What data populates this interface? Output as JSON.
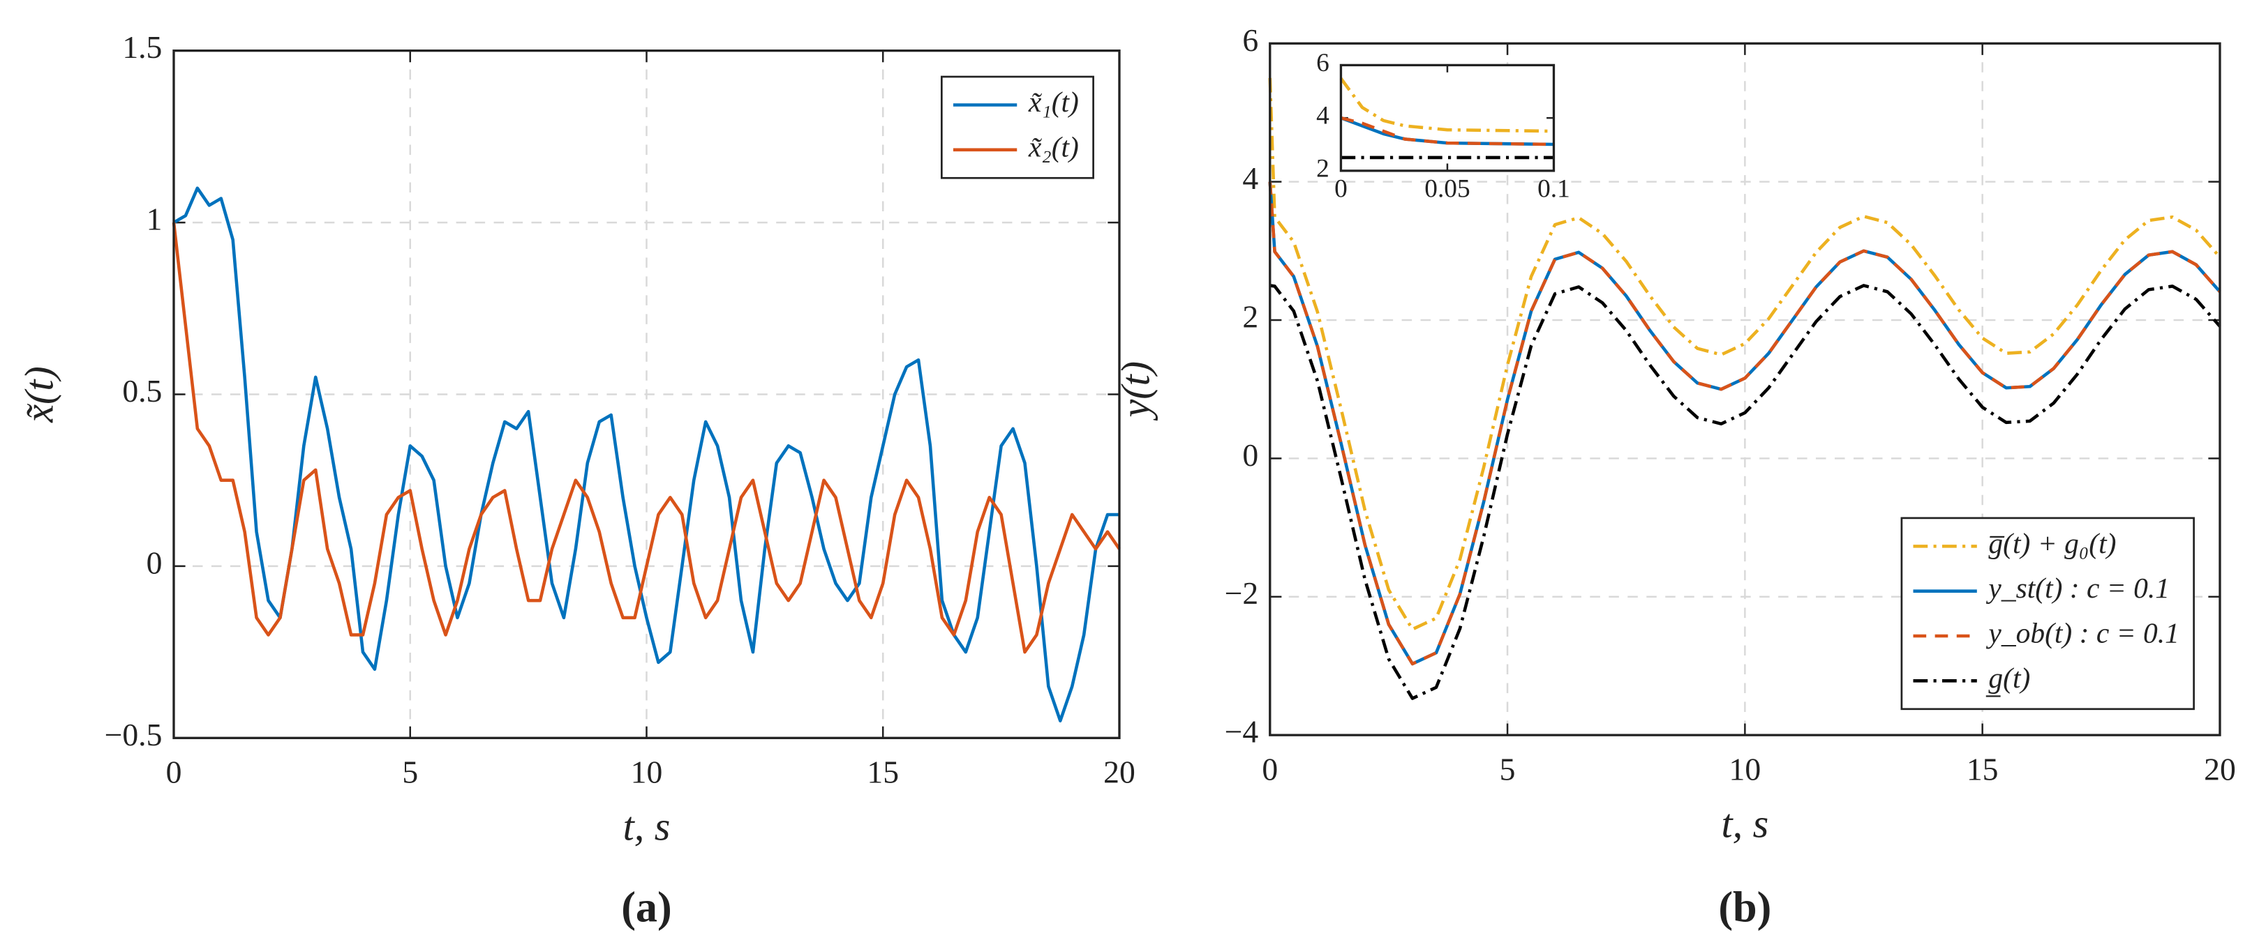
{
  "chart_data": [
    {
      "type": "line",
      "label": "(a)",
      "xlabel": "t, s",
      "ylabel": "x̃(t)",
      "xlim": [
        0,
        20
      ],
      "xticks": [
        0,
        5,
        10,
        15,
        20
      ],
      "ylim": [
        -0.5,
        1.5
      ],
      "yticks": [
        {
          "value": -0.5,
          "label": "−0.5"
        },
        0,
        0.5,
        1,
        1.5
      ],
      "grid": true,
      "legend": "upper right",
      "x": [
        0,
        0.25,
        0.5,
        0.75,
        1,
        1.25,
        1.5,
        1.75,
        2,
        2.25,
        2.5,
        2.75,
        3,
        3.25,
        3.5,
        3.75,
        4,
        4.25,
        4.5,
        4.75,
        5,
        5.25,
        5.5,
        5.75,
        6,
        6.25,
        6.5,
        6.75,
        7,
        7.25,
        7.5,
        7.75,
        8,
        8.25,
        8.5,
        8.75,
        9,
        9.25,
        9.5,
        9.75,
        10,
        10.25,
        10.5,
        10.75,
        11,
        11.25,
        11.5,
        11.75,
        12,
        12.25,
        12.5,
        12.75,
        13,
        13.25,
        13.5,
        13.75,
        14,
        14.25,
        14.5,
        14.75,
        15,
        15.25,
        15.5,
        15.75,
        16,
        16.25,
        16.5,
        16.75,
        17,
        17.25,
        17.5,
        17.75,
        18,
        18.25,
        18.5,
        18.75,
        19,
        19.25,
        19.5,
        19.75,
        20
      ],
      "series": [
        {
          "name": "x̃₁(t)",
          "color": "#0072BD",
          "dash": "solid",
          "values": [
            1,
            1.02,
            1.1,
            1.05,
            1.07,
            0.95,
            0.55,
            0.1,
            -0.1,
            -0.15,
            0.05,
            0.35,
            0.55,
            0.4,
            0.2,
            0.05,
            -0.25,
            -0.3,
            -0.1,
            0.15,
            0.35,
            0.32,
            0.25,
            0,
            -0.15,
            -0.05,
            0.15,
            0.3,
            0.42,
            0.4,
            0.45,
            0.2,
            -0.05,
            -0.15,
            0.05,
            0.3,
            0.42,
            0.44,
            0.2,
            0,
            -0.15,
            -0.28,
            -0.25,
            0,
            0.25,
            0.42,
            0.35,
            0.2,
            -0.1,
            -0.25,
            0.05,
            0.3,
            0.35,
            0.33,
            0.2,
            0.05,
            -0.05,
            -0.1,
            -0.05,
            0.2,
            0.35,
            0.5,
            0.58,
            0.6,
            0.35,
            -0.1,
            -0.2,
            -0.25,
            -0.15,
            0.1,
            0.35,
            0.4,
            0.3,
            0,
            -0.35,
            -0.45,
            -0.35,
            -0.2,
            0.05,
            0.15,
            0.15
          ]
        },
        {
          "name": "x̃₂(t)",
          "color": "#D95319",
          "dash": "solid",
          "values": [
            1,
            0.7,
            0.4,
            0.35,
            0.25,
            0.25,
            0.1,
            -0.15,
            -0.2,
            -0.15,
            0.05,
            0.25,
            0.28,
            0.05,
            -0.05,
            -0.2,
            -0.2,
            -0.05,
            0.15,
            0.2,
            0.22,
            0.05,
            -0.1,
            -0.2,
            -0.1,
            0.05,
            0.15,
            0.2,
            0.22,
            0.05,
            -0.1,
            -0.1,
            0.05,
            0.15,
            0.25,
            0.2,
            0.1,
            -0.05,
            -0.15,
            -0.15,
            0,
            0.15,
            0.2,
            0.15,
            -0.05,
            -0.15,
            -0.1,
            0.05,
            0.2,
            0.25,
            0.1,
            -0.05,
            -0.1,
            -0.05,
            0.1,
            0.25,
            0.2,
            0.05,
            -0.1,
            -0.15,
            -0.05,
            0.15,
            0.25,
            0.2,
            0.05,
            -0.15,
            -0.2,
            -0.1,
            0.1,
            0.2,
            0.15,
            -0.05,
            -0.25,
            -0.2,
            -0.05,
            0.05,
            0.15,
            0.1,
            0.05,
            0.1,
            0.05
          ]
        }
      ]
    },
    {
      "type": "line",
      "label": "(b)",
      "xlabel": "t, s",
      "ylabel": "y(t)",
      "xlim": [
        0,
        20
      ],
      "xticks": [
        0,
        5,
        10,
        15,
        20
      ],
      "ylim": [
        -4,
        6
      ],
      "yticks": [
        {
          "value": -4,
          "label": "−4"
        },
        {
          "value": -2,
          "label": "−2"
        },
        0,
        2,
        4,
        6
      ],
      "grid": true,
      "legend": "lower right",
      "x": [
        0,
        0.1,
        0.5,
        1,
        1.5,
        2,
        2.5,
        3,
        3.5,
        4,
        4.5,
        5,
        5.5,
        6,
        6.5,
        7,
        7.5,
        8,
        8.5,
        9,
        9.5,
        10,
        10.5,
        11,
        11.5,
        12,
        12.5,
        13,
        13.5,
        14,
        14.5,
        15,
        15.5,
        16,
        16.5,
        17,
        17.5,
        18,
        18.5,
        19,
        19.5,
        20
      ],
      "series": [
        {
          "name": "g̅(t) + g₀(t)",
          "color": "#EDB120",
          "dash": "dashdot",
          "values": [
            5.5,
            3.49,
            3.13,
            2.12,
            0.71,
            -0.75,
            -1.9,
            -2.47,
            -2.31,
            -1.46,
            -0.13,
            1.35,
            2.63,
            3.38,
            3.48,
            3.25,
            2.85,
            2.35,
            1.9,
            1.59,
            1.5,
            1.66,
            2.02,
            2.5,
            2.98,
            3.34,
            3.5,
            3.41,
            3.09,
            2.64,
            2.15,
            1.74,
            1.52,
            1.54,
            1.8,
            2.22,
            2.72,
            3.16,
            3.44,
            3.49,
            3.3,
            2.91
          ]
        },
        {
          "name": "y_st(t) : c = 0.1",
          "color": "#0072BD",
          "dash": "solid",
          "values": [
            4,
            2.99,
            2.63,
            1.62,
            0.21,
            -1.25,
            -2.4,
            -2.97,
            -2.81,
            -1.96,
            -0.63,
            0.85,
            2.13,
            2.88,
            2.98,
            2.75,
            2.35,
            1.85,
            1.4,
            1.09,
            1,
            1.16,
            1.52,
            2,
            2.48,
            2.84,
            3,
            2.91,
            2.59,
            2.14,
            1.65,
            1.24,
            1.02,
            1.04,
            1.3,
            1.72,
            2.22,
            2.66,
            2.94,
            2.99,
            2.8,
            2.41
          ]
        },
        {
          "name": "y_ob(t) : c = 0.1",
          "color": "#D95319",
          "dash": "dashed",
          "values": [
            4,
            2.99,
            2.63,
            1.62,
            0.21,
            -1.25,
            -2.4,
            -2.97,
            -2.81,
            -1.96,
            -0.63,
            0.85,
            2.13,
            2.88,
            2.98,
            2.75,
            2.35,
            1.85,
            1.4,
            1.09,
            1,
            1.16,
            1.52,
            2,
            2.48,
            2.84,
            3,
            2.91,
            2.59,
            2.14,
            1.65,
            1.24,
            1.02,
            1.04,
            1.3,
            1.72,
            2.22,
            2.66,
            2.94,
            2.99,
            2.8,
            2.41
          ]
        },
        {
          "name": "g̲(t)",
          "color": "#000000",
          "dash": "dashdot",
          "values": [
            2.5,
            2.49,
            2.13,
            1.12,
            -0.29,
            -1.75,
            -2.9,
            -3.47,
            -3.31,
            -2.46,
            -1.13,
            0.35,
            1.63,
            2.38,
            2.48,
            2.25,
            1.85,
            1.35,
            0.9,
            0.59,
            0.5,
            0.66,
            1.02,
            1.5,
            1.98,
            2.34,
            2.5,
            2.41,
            2.09,
            1.64,
            1.15,
            0.74,
            0.52,
            0.54,
            0.8,
            1.22,
            1.72,
            2.16,
            2.44,
            2.49,
            2.3,
            1.91
          ]
        }
      ]
    },
    {
      "type": "line",
      "xlim": [
        0,
        0.1
      ],
      "xticks": [
        0,
        0.05,
        0.1
      ],
      "ylim": [
        2,
        6
      ],
      "yticks": [
        2,
        4,
        6
      ],
      "grid": false,
      "x": [
        0,
        0.01,
        0.02,
        0.03,
        0.05,
        0.1
      ],
      "series": [
        {
          "color": "#EDB120",
          "dash": "dashdot",
          "values": [
            5.5,
            4.4,
            3.9,
            3.7,
            3.55,
            3.5
          ]
        },
        {
          "color": "#0072BD",
          "dash": "solid",
          "values": [
            4,
            3.7,
            3.4,
            3.2,
            3.05,
            3
          ]
        },
        {
          "color": "#D95319",
          "dash": "dashed",
          "values": [
            4,
            3.8,
            3.5,
            3.2,
            3.05,
            3
          ]
        },
        {
          "color": "#000000",
          "dash": "dashdot",
          "values": [
            2.5,
            2.5,
            2.5,
            2.5,
            2.5,
            2.5
          ]
        }
      ]
    }
  ]
}
